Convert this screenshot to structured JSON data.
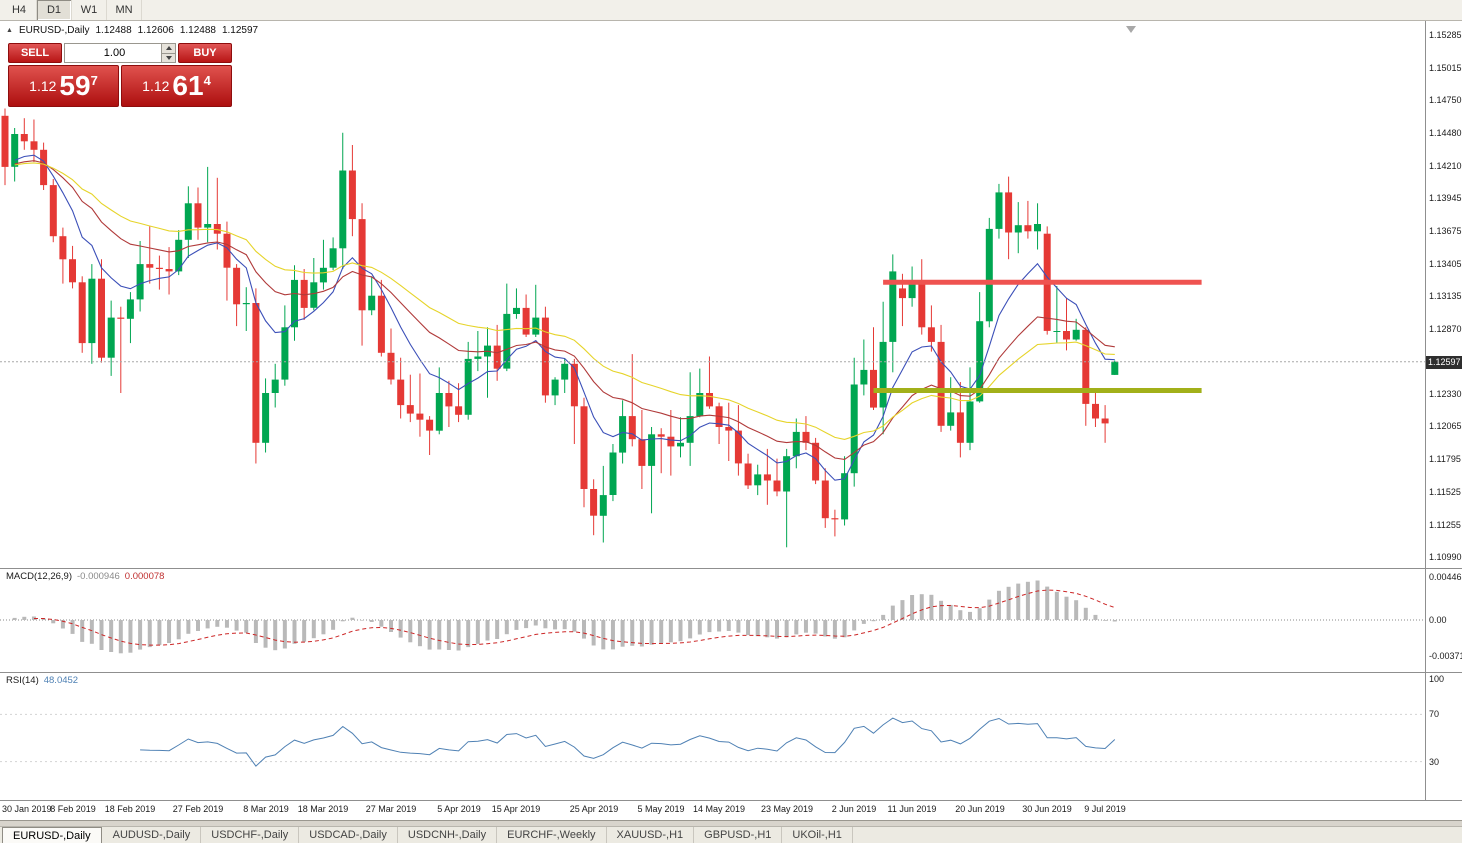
{
  "toolbar": {
    "buttons": [
      {
        "label": "H4",
        "active": false
      },
      {
        "label": "D1",
        "active": true
      },
      {
        "label": "W1",
        "active": false
      },
      {
        "label": "MN",
        "active": false
      }
    ]
  },
  "chart": {
    "title": "EURUSD-,Daily",
    "ohlc": {
      "open": "1.12488",
      "high": "1.12606",
      "low": "1.12488",
      "close": "1.12597"
    },
    "current_price": "1.12597",
    "price_scale_labels": [
      "1.15285",
      "1.15015",
      "1.14750",
      "1.14480",
      "1.14210",
      "1.13945",
      "1.13675",
      "1.13405",
      "1.13135",
      "1.12870",
      "1.12330",
      "1.12065",
      "1.11795",
      "1.11525",
      "1.11255",
      "1.10990"
    ]
  },
  "trade_panel": {
    "sell_label": "SELL",
    "buy_label": "BUY",
    "volume": "1.00",
    "sell_price": {
      "prefix": "1.12",
      "big": "59",
      "sup": "7"
    },
    "buy_price": {
      "prefix": "1.12",
      "big": "61",
      "sup": "4"
    }
  },
  "macd": {
    "label": "MACD(12,26,9)",
    "main_value": "-0.000946",
    "signal_value": "0.000078",
    "scale": [
      "0.004465",
      "0.00",
      "-0.003715"
    ],
    "params": {
      "fast": 12,
      "slow": 26,
      "signal": 9
    },
    "colors": {
      "histogram": "#b9b9b9",
      "signal": "#cc2626"
    }
  },
  "rsi": {
    "label": "RSI(14)",
    "value": "48.0452",
    "period": 14,
    "scale": [
      "100",
      "70",
      "30"
    ],
    "levels": [
      70,
      30
    ],
    "color": "#4f81b4"
  },
  "tabs": [
    {
      "label": "EURUSD-,Daily",
      "active": true
    },
    {
      "label": "AUDUSD-,Daily",
      "active": false
    },
    {
      "label": "USDCHF-,Daily",
      "active": false
    },
    {
      "label": "USDCAD-,Daily",
      "active": false
    },
    {
      "label": "USDCNH-,Daily",
      "active": false
    },
    {
      "label": "EURCHF-,Weekly",
      "active": false
    },
    {
      "label": "XAUUSD-,H1",
      "active": false
    },
    {
      "label": "GBPUSD-,H1",
      "active": false
    },
    {
      "label": "UKOil-,H1",
      "active": false
    }
  ],
  "chart_data": {
    "type": "candlestick",
    "symbol": "EURUSD",
    "timeframe": "Daily",
    "price_range": [
      1.109,
      1.154
    ],
    "colors": {
      "up": "#00a651",
      "down": "#e53935"
    },
    "moving_averages": [
      {
        "name": "fast-ma",
        "period": 9,
        "type": "ema",
        "color": "#3b4fb8"
      },
      {
        "name": "medium-ma",
        "period": 21,
        "type": "ema",
        "color": "#b03a3a"
      },
      {
        "name": "slow-ma",
        "period": 34,
        "type": "ema",
        "color": "#e6d42a"
      }
    ],
    "hlines": [
      {
        "name": "resistance-line",
        "price": 1.1325,
        "start_index": 91,
        "color": "#ef5350",
        "width": 5
      },
      {
        "name": "support-line",
        "price": 1.1236,
        "start_index": 90,
        "color": "#a2b019",
        "width": 5
      }
    ],
    "hline_extend_bars": 9,
    "x_labels": [
      {
        "text": "30 Jan 2019",
        "index": 0
      },
      {
        "text": "8 Feb 2019",
        "index": 7
      },
      {
        "text": "18 Feb 2019",
        "index": 13
      },
      {
        "text": "27 Feb 2019",
        "index": 20
      },
      {
        "text": "8 Mar 2019",
        "index": 27
      },
      {
        "text": "18 Mar 2019",
        "index": 33
      },
      {
        "text": "27 Mar 2019",
        "index": 40
      },
      {
        "text": "5 Apr 2019",
        "index": 47
      },
      {
        "text": "15 Apr 2019",
        "index": 53
      },
      {
        "text": "25 Apr 2019",
        "index": 61
      },
      {
        "text": "5 May 2019",
        "index": 68
      },
      {
        "text": "14 May 2019",
        "index": 74
      },
      {
        "text": "23 May 2019",
        "index": 81
      },
      {
        "text": "2 Jun 2019",
        "index": 88
      },
      {
        "text": "11 Jun 2019",
        "index": 94
      },
      {
        "text": "20 Jun 2019",
        "index": 101
      },
      {
        "text": "30 Jun 2019",
        "index": 108
      },
      {
        "text": "9 Jul 2019",
        "index": 114
      }
    ],
    "candles": [
      [
        1.1462,
        1.1468,
        1.1405,
        1.142
      ],
      [
        1.142,
        1.1452,
        1.1408,
        1.1447
      ],
      [
        1.1447,
        1.146,
        1.1434,
        1.1441
      ],
      [
        1.1441,
        1.1459,
        1.1424,
        1.1434
      ],
      [
        1.1434,
        1.144,
        1.1401,
        1.1405
      ],
      [
        1.1405,
        1.141,
        1.1358,
        1.1363
      ],
      [
        1.1363,
        1.137,
        1.1324,
        1.1344
      ],
      [
        1.1344,
        1.1355,
        1.132,
        1.1325
      ],
      [
        1.1325,
        1.133,
        1.1267,
        1.1275
      ],
      [
        1.1275,
        1.134,
        1.1258,
        1.1328
      ],
      [
        1.1328,
        1.1344,
        1.1259,
        1.1263
      ],
      [
        1.1263,
        1.131,
        1.1248,
        1.1296
      ],
      [
        1.1296,
        1.1305,
        1.1234,
        1.1295
      ],
      [
        1.1295,
        1.1317,
        1.1275,
        1.1311
      ],
      [
        1.1311,
        1.1359,
        1.1301,
        1.134
      ],
      [
        1.134,
        1.1371,
        1.1324,
        1.1337
      ],
      [
        1.1337,
        1.1347,
        1.1319,
        1.1336
      ],
      [
        1.1336,
        1.1354,
        1.1315,
        1.1334
      ],
      [
        1.1334,
        1.1368,
        1.1331,
        1.136
      ],
      [
        1.136,
        1.1404,
        1.1345,
        1.139
      ],
      [
        1.139,
        1.1403,
        1.136,
        1.137
      ],
      [
        1.137,
        1.142,
        1.1358,
        1.1373
      ],
      [
        1.1373,
        1.1411,
        1.1352,
        1.1365
      ],
      [
        1.1365,
        1.1375,
        1.131,
        1.1337
      ],
      [
        1.1337,
        1.134,
        1.1289,
        1.1307
      ],
      [
        1.1307,
        1.1321,
        1.1285,
        1.1308
      ],
      [
        1.1308,
        1.132,
        1.1176,
        1.1193
      ],
      [
        1.1193,
        1.1246,
        1.1185,
        1.1234
      ],
      [
        1.1234,
        1.1258,
        1.1222,
        1.1245
      ],
      [
        1.1245,
        1.1306,
        1.124,
        1.1288
      ],
      [
        1.1288,
        1.1339,
        1.1277,
        1.1327
      ],
      [
        1.1327,
        1.1336,
        1.1294,
        1.1304
      ],
      [
        1.1304,
        1.1345,
        1.1302,
        1.1325
      ],
      [
        1.1325,
        1.136,
        1.1319,
        1.1337
      ],
      [
        1.1337,
        1.1362,
        1.1335,
        1.1353
      ],
      [
        1.1353,
        1.1448,
        1.1336,
        1.1417
      ],
      [
        1.1417,
        1.1438,
        1.1363,
        1.1377
      ],
      [
        1.1377,
        1.139,
        1.1273,
        1.1302
      ],
      [
        1.1302,
        1.133,
        1.1298,
        1.1314
      ],
      [
        1.1314,
        1.1327,
        1.1264,
        1.1267
      ],
      [
        1.1267,
        1.1287,
        1.1241,
        1.1245
      ],
      [
        1.1245,
        1.1263,
        1.1213,
        1.1224
      ],
      [
        1.1224,
        1.1249,
        1.121,
        1.1217
      ],
      [
        1.1217,
        1.125,
        1.1198,
        1.1212
      ],
      [
        1.1212,
        1.1215,
        1.1183,
        1.1203
      ],
      [
        1.1203,
        1.1255,
        1.12,
        1.1234
      ],
      [
        1.1234,
        1.1244,
        1.1206,
        1.1223
      ],
      [
        1.1223,
        1.1242,
        1.121,
        1.1216
      ],
      [
        1.1216,
        1.1276,
        1.1212,
        1.1262
      ],
      [
        1.1262,
        1.1285,
        1.1252,
        1.1264
      ],
      [
        1.1264,
        1.1288,
        1.123,
        1.1273
      ],
      [
        1.1273,
        1.129,
        1.1244,
        1.1254
      ],
      [
        1.1254,
        1.1324,
        1.1252,
        1.1299
      ],
      [
        1.1299,
        1.132,
        1.1295,
        1.1304
      ],
      [
        1.1304,
        1.1315,
        1.128,
        1.1282
      ],
      [
        1.1282,
        1.1323,
        1.128,
        1.1296
      ],
      [
        1.1296,
        1.1305,
        1.1226,
        1.1232
      ],
      [
        1.1232,
        1.1247,
        1.1224,
        1.1245
      ],
      [
        1.1245,
        1.1262,
        1.1234,
        1.1258
      ],
      [
        1.1258,
        1.1262,
        1.1192,
        1.1223
      ],
      [
        1.1223,
        1.123,
        1.114,
        1.1155
      ],
      [
        1.1155,
        1.1163,
        1.1117,
        1.1133
      ],
      [
        1.1133,
        1.1174,
        1.1111,
        1.115
      ],
      [
        1.115,
        1.1192,
        1.1145,
        1.1185
      ],
      [
        1.1185,
        1.1228,
        1.1176,
        1.1215
      ],
      [
        1.1215,
        1.1266,
        1.119,
        1.1196
      ],
      [
        1.1196,
        1.122,
        1.1155,
        1.1174
      ],
      [
        1.1174,
        1.1206,
        1.1135,
        1.12
      ],
      [
        1.12,
        1.1205,
        1.1168,
        1.1198
      ],
      [
        1.1198,
        1.122,
        1.1166,
        1.119
      ],
      [
        1.119,
        1.1214,
        1.1181,
        1.1193
      ],
      [
        1.1193,
        1.1251,
        1.1174,
        1.1215
      ],
      [
        1.1215,
        1.1254,
        1.1214,
        1.1234
      ],
      [
        1.1234,
        1.1264,
        1.1221,
        1.1223
      ],
      [
        1.1223,
        1.1226,
        1.1192,
        1.1206
      ],
      [
        1.1206,
        1.1226,
        1.1178,
        1.1203
      ],
      [
        1.1203,
        1.1224,
        1.1166,
        1.1176
      ],
      [
        1.1176,
        1.1184,
        1.1155,
        1.1158
      ],
      [
        1.1158,
        1.1175,
        1.115,
        1.1167
      ],
      [
        1.1167,
        1.1188,
        1.1142,
        1.1162
      ],
      [
        1.1162,
        1.118,
        1.1149,
        1.1153
      ],
      [
        1.1153,
        1.1188,
        1.1107,
        1.1182
      ],
      [
        1.1182,
        1.1213,
        1.1172,
        1.1202
      ],
      [
        1.1202,
        1.1215,
        1.1187,
        1.1193
      ],
      [
        1.1193,
        1.1197,
        1.1159,
        1.1162
      ],
      [
        1.1162,
        1.1172,
        1.1123,
        1.1131
      ],
      [
        1.1131,
        1.1138,
        1.1116,
        1.113
      ],
      [
        1.113,
        1.1182,
        1.1125,
        1.1168
      ],
      [
        1.1168,
        1.1263,
        1.1157,
        1.1241
      ],
      [
        1.1241,
        1.1278,
        1.1232,
        1.1253
      ],
      [
        1.1253,
        1.1288,
        1.122,
        1.1222
      ],
      [
        1.1222,
        1.1309,
        1.12,
        1.1276
      ],
      [
        1.1276,
        1.1348,
        1.1251,
        1.1334
      ],
      [
        1.132,
        1.1332,
        1.1289,
        1.1312
      ],
      [
        1.1312,
        1.1338,
        1.1305,
        1.1326
      ],
      [
        1.1326,
        1.1344,
        1.1282,
        1.1288
      ],
      [
        1.1288,
        1.1306,
        1.1268,
        1.1276
      ],
      [
        1.1276,
        1.129,
        1.1202,
        1.1207
      ],
      [
        1.1207,
        1.1247,
        1.1203,
        1.1218
      ],
      [
        1.1218,
        1.1243,
        1.1181,
        1.1193
      ],
      [
        1.1193,
        1.1255,
        1.1187,
        1.1227
      ],
      [
        1.1227,
        1.1317,
        1.1226,
        1.1293
      ],
      [
        1.1293,
        1.1378,
        1.1288,
        1.1369
      ],
      [
        1.1369,
        1.1406,
        1.1361,
        1.1399
      ],
      [
        1.1399,
        1.1412,
        1.1344,
        1.1366
      ],
      [
        1.1366,
        1.1391,
        1.1349,
        1.1372
      ],
      [
        1.1372,
        1.1392,
        1.1361,
        1.1367
      ],
      [
        1.1367,
        1.139,
        1.1352,
        1.1373
      ],
      [
        1.1365,
        1.1371,
        1.1282,
        1.1285
      ],
      [
        1.1285,
        1.1322,
        1.1275,
        1.1285
      ],
      [
        1.1285,
        1.1312,
        1.1269,
        1.1278
      ],
      [
        1.1278,
        1.1295,
        1.1277,
        1.1286
      ],
      [
        1.1286,
        1.1288,
        1.1207,
        1.1225
      ],
      [
        1.1225,
        1.1234,
        1.1206,
        1.1213
      ],
      [
        1.1213,
        1.1224,
        1.1193,
        1.1209
      ],
      [
        1.12488,
        1.12606,
        1.12488,
        1.12597
      ]
    ]
  }
}
